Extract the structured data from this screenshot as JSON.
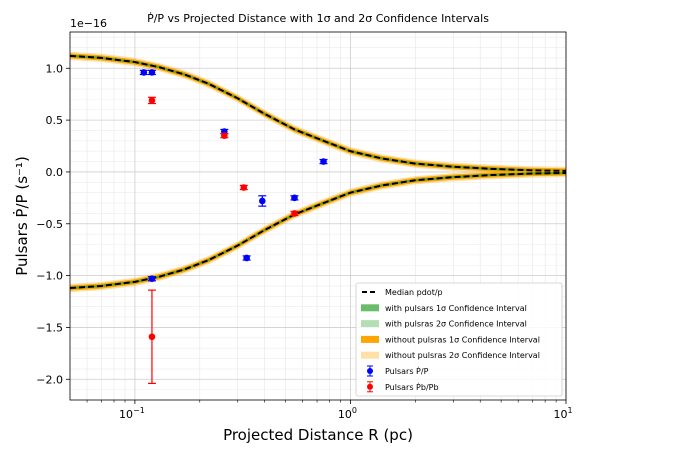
{
  "chart_data": {
    "type": "scatter",
    "title": "Ṗ/P vs Projected Distance with 1σ and 2σ Confidence Intervals",
    "xlabel": "Projected Distance R (pc)",
    "ylabel": "Pulsars Ṗ/P (s⁻¹)",
    "y_offset_label": "1e−16",
    "x_scale": "log",
    "xlim": [
      0.05,
      10
    ],
    "ylim": [
      -2.2,
      1.35
    ],
    "grid": true,
    "legend_position": "lower-right",
    "x_ticks": [
      {
        "value": 0.1,
        "base": "10",
        "exp": "−1"
      },
      {
        "value": 1,
        "base": "10",
        "exp": "0"
      },
      {
        "value": 10,
        "base": "10",
        "exp": "1"
      }
    ],
    "y_ticks": [
      {
        "value": 1.0,
        "label": "1.0"
      },
      {
        "value": 0.5,
        "label": "0.5"
      },
      {
        "value": 0.0,
        "label": "0.0"
      },
      {
        "value": -0.5,
        "label": "−0.5"
      },
      {
        "value": -1.0,
        "label": "−1.0"
      },
      {
        "value": -1.5,
        "label": "−1.5"
      },
      {
        "value": -2.0,
        "label": "−2.0"
      }
    ],
    "median_curve": {
      "name": "Median pdot/p",
      "color": "#000000",
      "x": [
        0.05,
        0.07,
        0.1,
        0.13,
        0.17,
        0.22,
        0.3,
        0.4,
        0.55,
        0.75,
        1.0,
        1.4,
        2.0,
        3.0,
        4.5,
        7.0,
        10.0
      ],
      "y": [
        1.12,
        1.1,
        1.06,
        1.01,
        0.94,
        0.85,
        0.71,
        0.56,
        0.41,
        0.3,
        0.2,
        0.13,
        0.08,
        0.05,
        0.03,
        0.015,
        0.01
      ]
    },
    "bands": [
      {
        "name": "with pulsars 1σ Confidence Interval",
        "color": "#2ca02c",
        "opacity": 0.7,
        "halfwidth": 0.012
      },
      {
        "name": "with pulsras 2σ Confidence Interval",
        "color": "#2ca02c",
        "opacity": 0.35,
        "halfwidth": 0.018
      },
      {
        "name": "without pulsras 1σ Confidence Interval",
        "color": "#ffa500",
        "opacity": 1.0,
        "halfwidth": 0.025
      },
      {
        "name": "without pulsras 2σ Confidence Interval",
        "color": "#ffa500",
        "opacity": 0.35,
        "halfwidth": 0.04
      }
    ],
    "series": [
      {
        "name": "Pulsars Ṗ/P",
        "color": "#0000ff",
        "points": [
          {
            "x": 0.11,
            "y": 0.96,
            "err": 0.02
          },
          {
            "x": 0.12,
            "y": 0.96,
            "err": 0.02
          },
          {
            "x": 0.26,
            "y": 0.39,
            "err": 0.02
          },
          {
            "x": 0.39,
            "y": -0.28,
            "err": 0.05
          },
          {
            "x": 0.55,
            "y": -0.25,
            "err": 0.02
          },
          {
            "x": 0.75,
            "y": 0.1,
            "err": 0.02
          },
          {
            "x": 0.33,
            "y": -0.83,
            "err": 0.02
          },
          {
            "x": 0.12,
            "y": -1.03,
            "err": 0.02
          }
        ]
      },
      {
        "name": "Pulsars Ṗb/Pb",
        "color": "#ff0000",
        "points": [
          {
            "x": 0.12,
            "y": 0.69,
            "err": 0.03
          },
          {
            "x": 0.26,
            "y": 0.35,
            "err": 0.02
          },
          {
            "x": 0.32,
            "y": -0.15,
            "err": 0.02
          },
          {
            "x": 0.55,
            "y": -0.4,
            "err": 0.02
          },
          {
            "x": 0.12,
            "y": -1.59,
            "err": 0.45
          }
        ]
      }
    ]
  }
}
